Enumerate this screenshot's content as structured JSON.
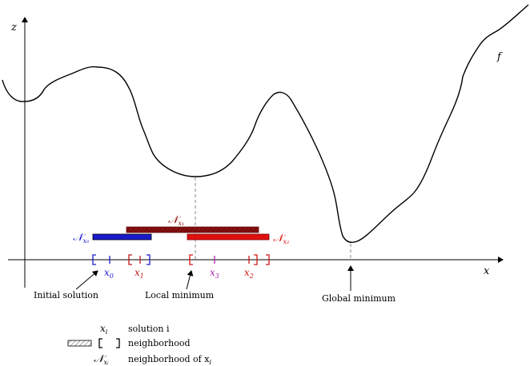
{
  "axes": {
    "z_label": "z",
    "x_label": "x",
    "curve_label": "f"
  },
  "neighborhoods": {
    "n0": {
      "base": "𝒩",
      "sub": "x₀",
      "color": "#1a1acc"
    },
    "n1": {
      "base": "𝒩",
      "sub": "x₁",
      "color": "#8b0f0f"
    },
    "n2": {
      "base": "𝒩",
      "sub": "x₂",
      "color": "#e01010"
    }
  },
  "points": {
    "x0": {
      "text": "x",
      "sub": "0",
      "color": "#1a1acc"
    },
    "x1": {
      "text": "x",
      "sub": "1",
      "color": "#c01818"
    },
    "x3": {
      "text": "x",
      "sub": "3",
      "color": "#b020b0"
    },
    "x2": {
      "text": "x",
      "sub": "2",
      "color": "#d01818"
    }
  },
  "annotations": {
    "initial": "Initial solution",
    "local": "Local minimum",
    "global": "Global minimum"
  },
  "legend": {
    "solution_symbol": "x",
    "solution_symbol_sub": "i",
    "solution_text": "solution i",
    "neighborhood_text": "neighborhood",
    "nbhd_symbol": "𝒩",
    "nbhd_symbol_sub": "xᵢ",
    "nbhd_of_text": "neighborhood of x",
    "nbhd_of_sub": "i"
  }
}
